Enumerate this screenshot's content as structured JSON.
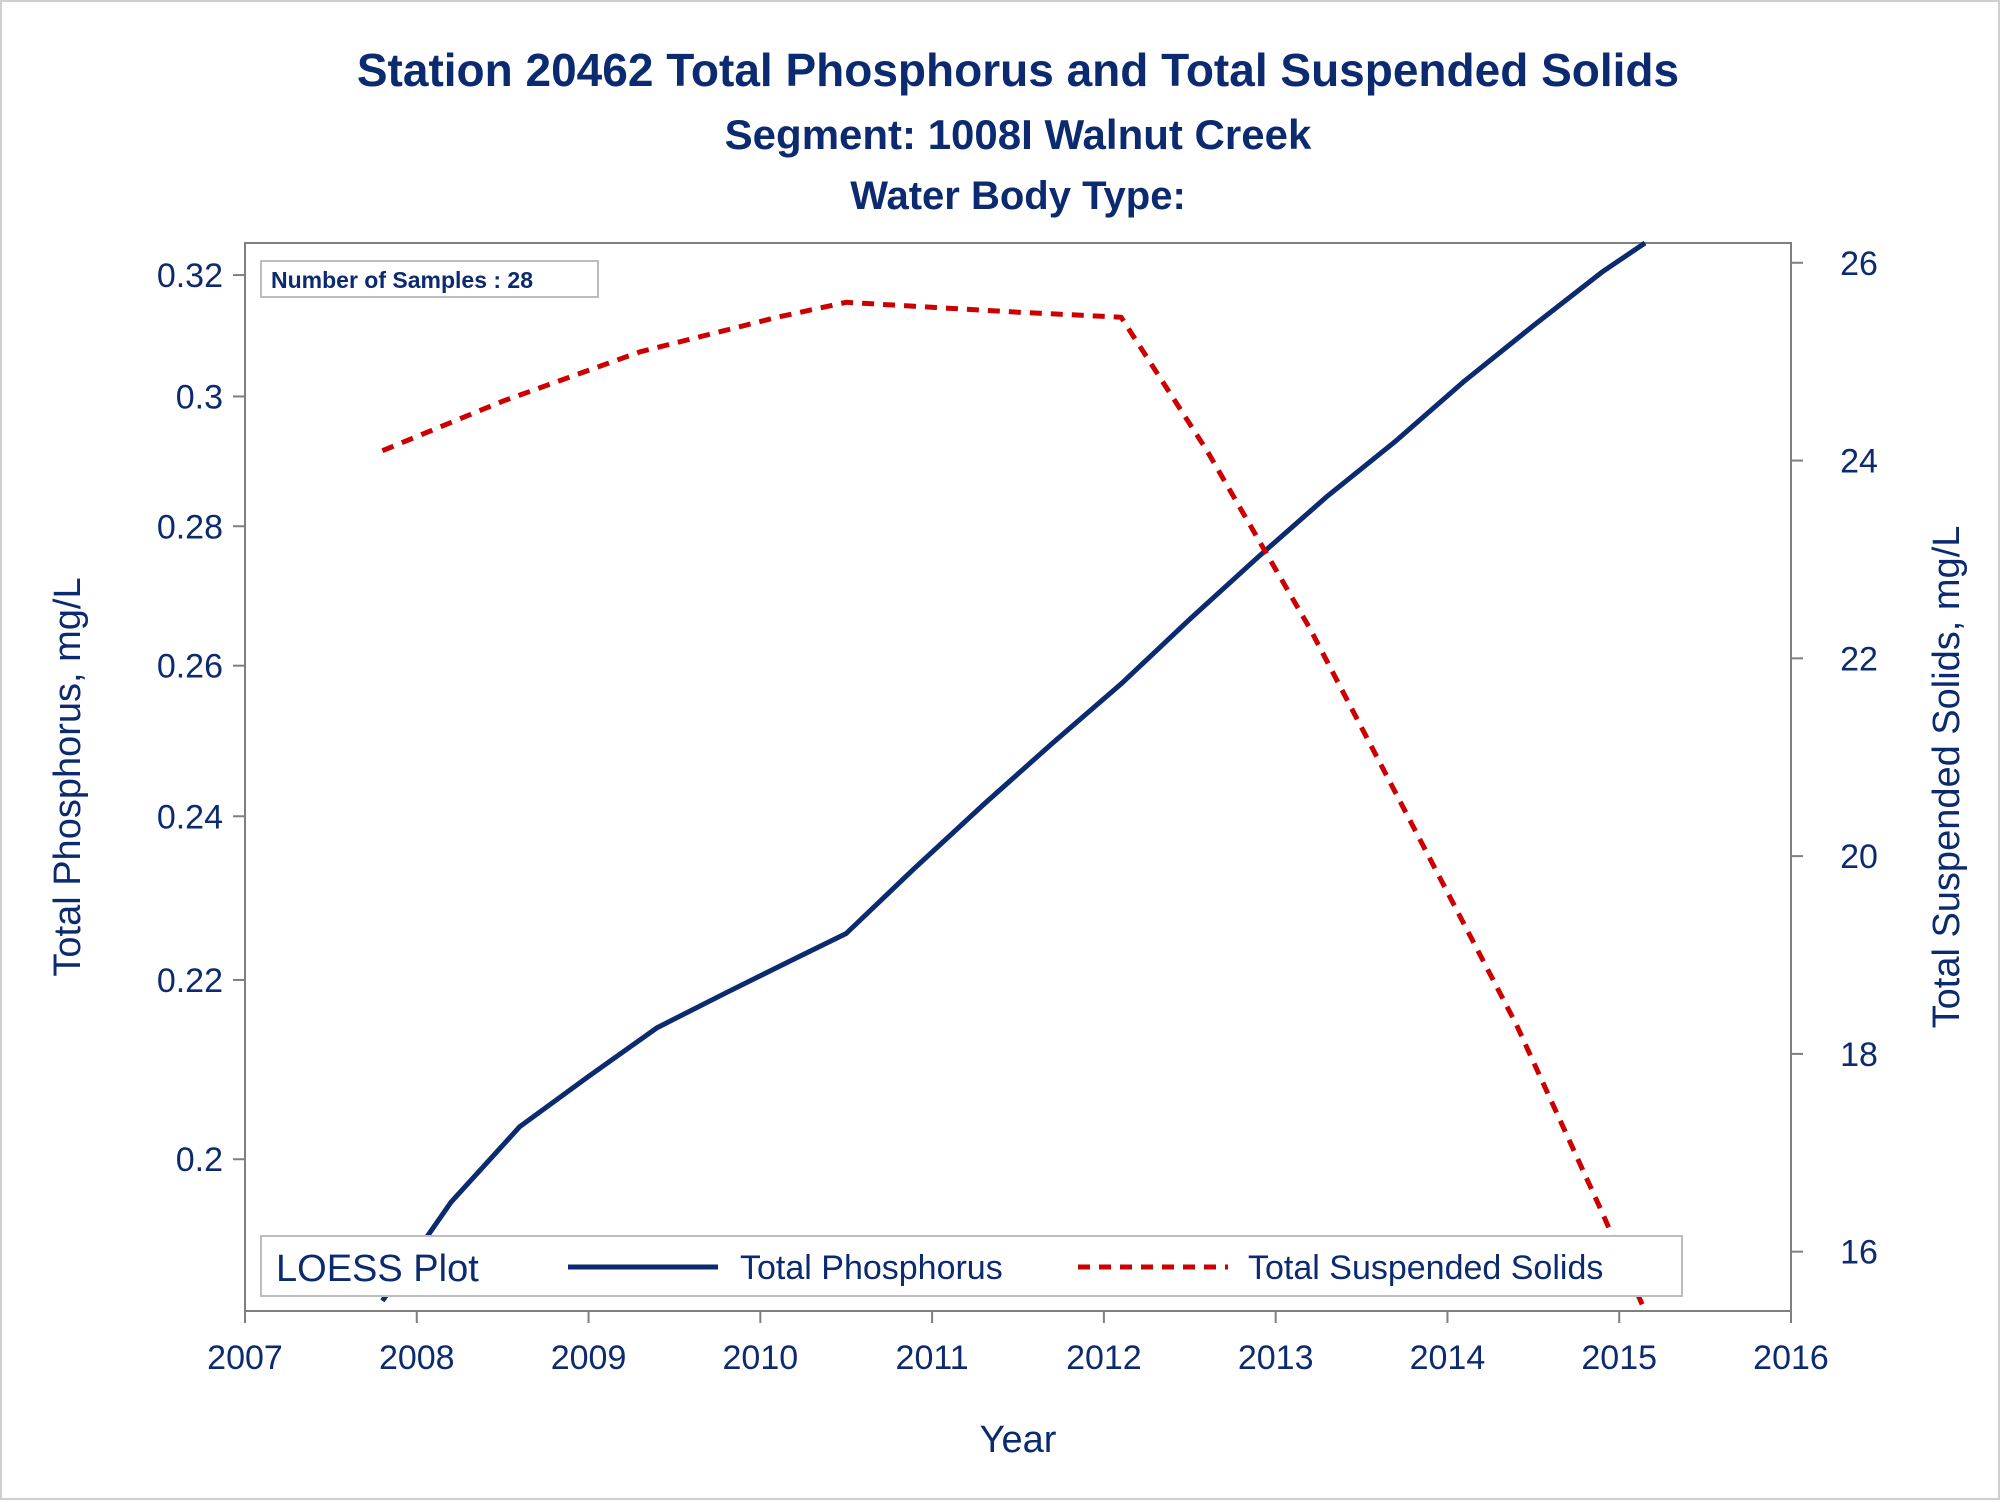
{
  "chart_data": {
    "type": "line",
    "title": "Station 20462  Total Phosphorus and Total Suspended Solids",
    "subtitle": "Segment: 1008I  Walnut Creek",
    "subtitle2": "Water Body Type:",
    "xlabel": "Year",
    "ylabel": "Total Phosphorus, mg/L",
    "y2label": "Total Suspended Solids, mg/L",
    "x_ticks": [
      "2007",
      "2008",
      "2009",
      "2010",
      "2011",
      "2012",
      "2013",
      "2014",
      "2015",
      "2016"
    ],
    "y_ticks": [
      "0.2",
      "0.22",
      "0.24",
      "0.26",
      "0.28",
      "0.3",
      "0.32"
    ],
    "y2_ticks": [
      "16",
      "18",
      "20",
      "22",
      "24",
      "26"
    ],
    "xlim": [
      2007,
      2016
    ],
    "ylim": [
      0.1845,
      0.3255
    ],
    "y_scale": "log",
    "y2lim": [
      15.4,
      26.2
    ],
    "grid": false,
    "legend_placement": "bottom-inside",
    "legend_title": "LOESS Plot",
    "inset_label": "Number of Samples : 28",
    "series": [
      {
        "name": "Total Phosphorus",
        "axis": "left",
        "color": "#0b2a6f",
        "dash": "solid",
        "x": [
          2007.8,
          2008.2,
          2008.6,
          2009.0,
          2009.4,
          2009.8,
          2010.2,
          2010.5,
          2010.9,
          2011.3,
          2011.7,
          2012.1,
          2012.5,
          2012.9,
          2013.3,
          2013.7,
          2014.1,
          2014.5,
          2014.9,
          2015.15
        ],
        "y": [
          0.1855,
          0.1955,
          0.2035,
          0.209,
          0.2145,
          0.2185,
          0.2225,
          0.2255,
          0.2335,
          0.2415,
          0.2495,
          0.2575,
          0.2665,
          0.2755,
          0.2845,
          0.293,
          0.3025,
          0.3115,
          0.3205,
          0.3255
        ]
      },
      {
        "name": "Total Suspended Solids",
        "axis": "right",
        "color": "#cc0000",
        "dash": "dashed",
        "x": [
          2007.8,
          2008.5,
          2009.3,
          2010.1,
          2010.5,
          2011.0,
          2011.5,
          2012.1,
          2012.6,
          2013.2,
          2013.8,
          2014.4,
          2014.9,
          2015.15
        ],
        "y": [
          24.1,
          24.6,
          25.1,
          25.45,
          25.6,
          25.55,
          25.5,
          25.45,
          24.1,
          22.3,
          20.3,
          18.3,
          16.4,
          15.4
        ]
      }
    ]
  }
}
